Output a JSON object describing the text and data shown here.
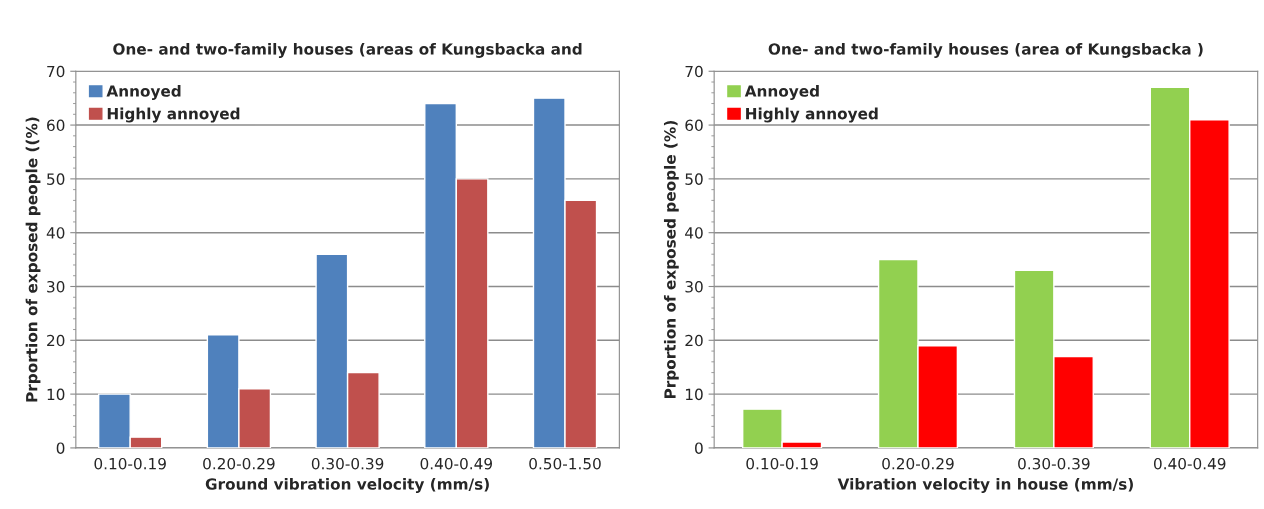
{
  "chart_data": [
    {
      "type": "bar",
      "title": "One- and two-family houses (areas of Kungsbacka and",
      "xlabel": "Ground vibration velocity (mm/s)",
      "ylabel": "Prportion of exposed people ((%)",
      "categories": [
        "0.10-0.19",
        "0.20-0.29",
        "0.30-0.39",
        "0.40-0.49",
        "0.50-1.50"
      ],
      "series": [
        {
          "name": "Annoyed",
          "color": "#4f81bd",
          "values": [
            10,
            21,
            36,
            64,
            65
          ]
        },
        {
          "name": "Highly annoyed",
          "color": "#c0504d",
          "values": [
            2,
            11,
            14,
            50,
            46
          ]
        }
      ],
      "ylim": [
        0,
        70
      ],
      "yticks": [
        0,
        10,
        20,
        30,
        40,
        50,
        60,
        70
      ],
      "grid": "y",
      "legend": "top left"
    },
    {
      "type": "bar",
      "title": "One- and two-family houses (area of Kungsbacka )",
      "xlabel": "Vibration velocity in house (mm/s)",
      "ylabel": "Prportion of exposed people (%)",
      "categories": [
        "0.10-0.19",
        "0.20-0.29",
        "0.30-0.39",
        "0.40-0.49"
      ],
      "series": [
        {
          "name": "Annoyed",
          "color": "#92d050",
          "values": [
            7.2,
            35,
            33,
            67
          ]
        },
        {
          "name": "Highly annoyed",
          "color": "#ff0000",
          "values": [
            1.1,
            19,
            17,
            61
          ]
        }
      ],
      "ylim": [
        0,
        70
      ],
      "yticks": [
        0,
        10,
        20,
        30,
        40,
        50,
        60,
        70
      ],
      "grid": "y",
      "legend": "top left"
    }
  ]
}
